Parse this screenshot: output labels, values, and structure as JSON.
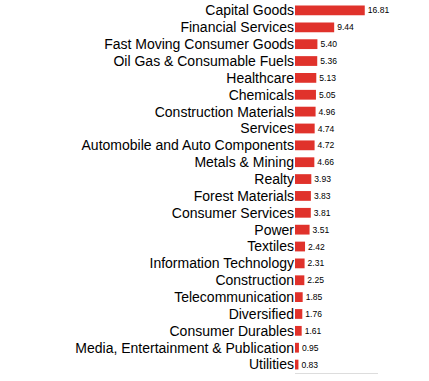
{
  "chart_data": {
    "type": "bar",
    "orientation": "horizontal",
    "categories": [
      "Capital Goods",
      "Financial Services",
      "Fast Moving Consumer Goods",
      "Oil Gas & Consumable Fuels",
      "Healthcare",
      "Chemicals",
      "Construction Materials",
      "Services",
      "Automobile and Auto Components",
      "Metals & Mining",
      "Realty",
      "Forest Materials",
      "Consumer Services",
      "Power",
      "Textiles",
      "Information Technology",
      "Construction",
      "Telecommunication",
      "Diversified",
      "Consumer Durables",
      "Media, Entertainment & Publication",
      "Utilities"
    ],
    "values": [
      16.81,
      9.44,
      5.4,
      5.36,
      5.13,
      5.05,
      4.96,
      4.74,
      4.72,
      4.66,
      3.93,
      3.83,
      3.81,
      3.51,
      2.42,
      2.31,
      2.25,
      1.85,
      1.76,
      1.61,
      0.95,
      0.83
    ],
    "value_labels": [
      "16.81",
      "9.44",
      "5.40",
      "5.36",
      "5.13",
      "5.05",
      "4.96",
      "4.74",
      "4.72",
      "4.66",
      "3.93",
      "3.83",
      "3.81",
      "3.51",
      "2.42",
      "2.31",
      "2.25",
      "1.85",
      "1.76",
      "1.61",
      "0.95",
      "0.83"
    ],
    "color": "#e0322b",
    "xlim": [
      0,
      20
    ],
    "xticks": [],
    "grid": false,
    "data_labels": true,
    "tick_labels": "y"
  }
}
